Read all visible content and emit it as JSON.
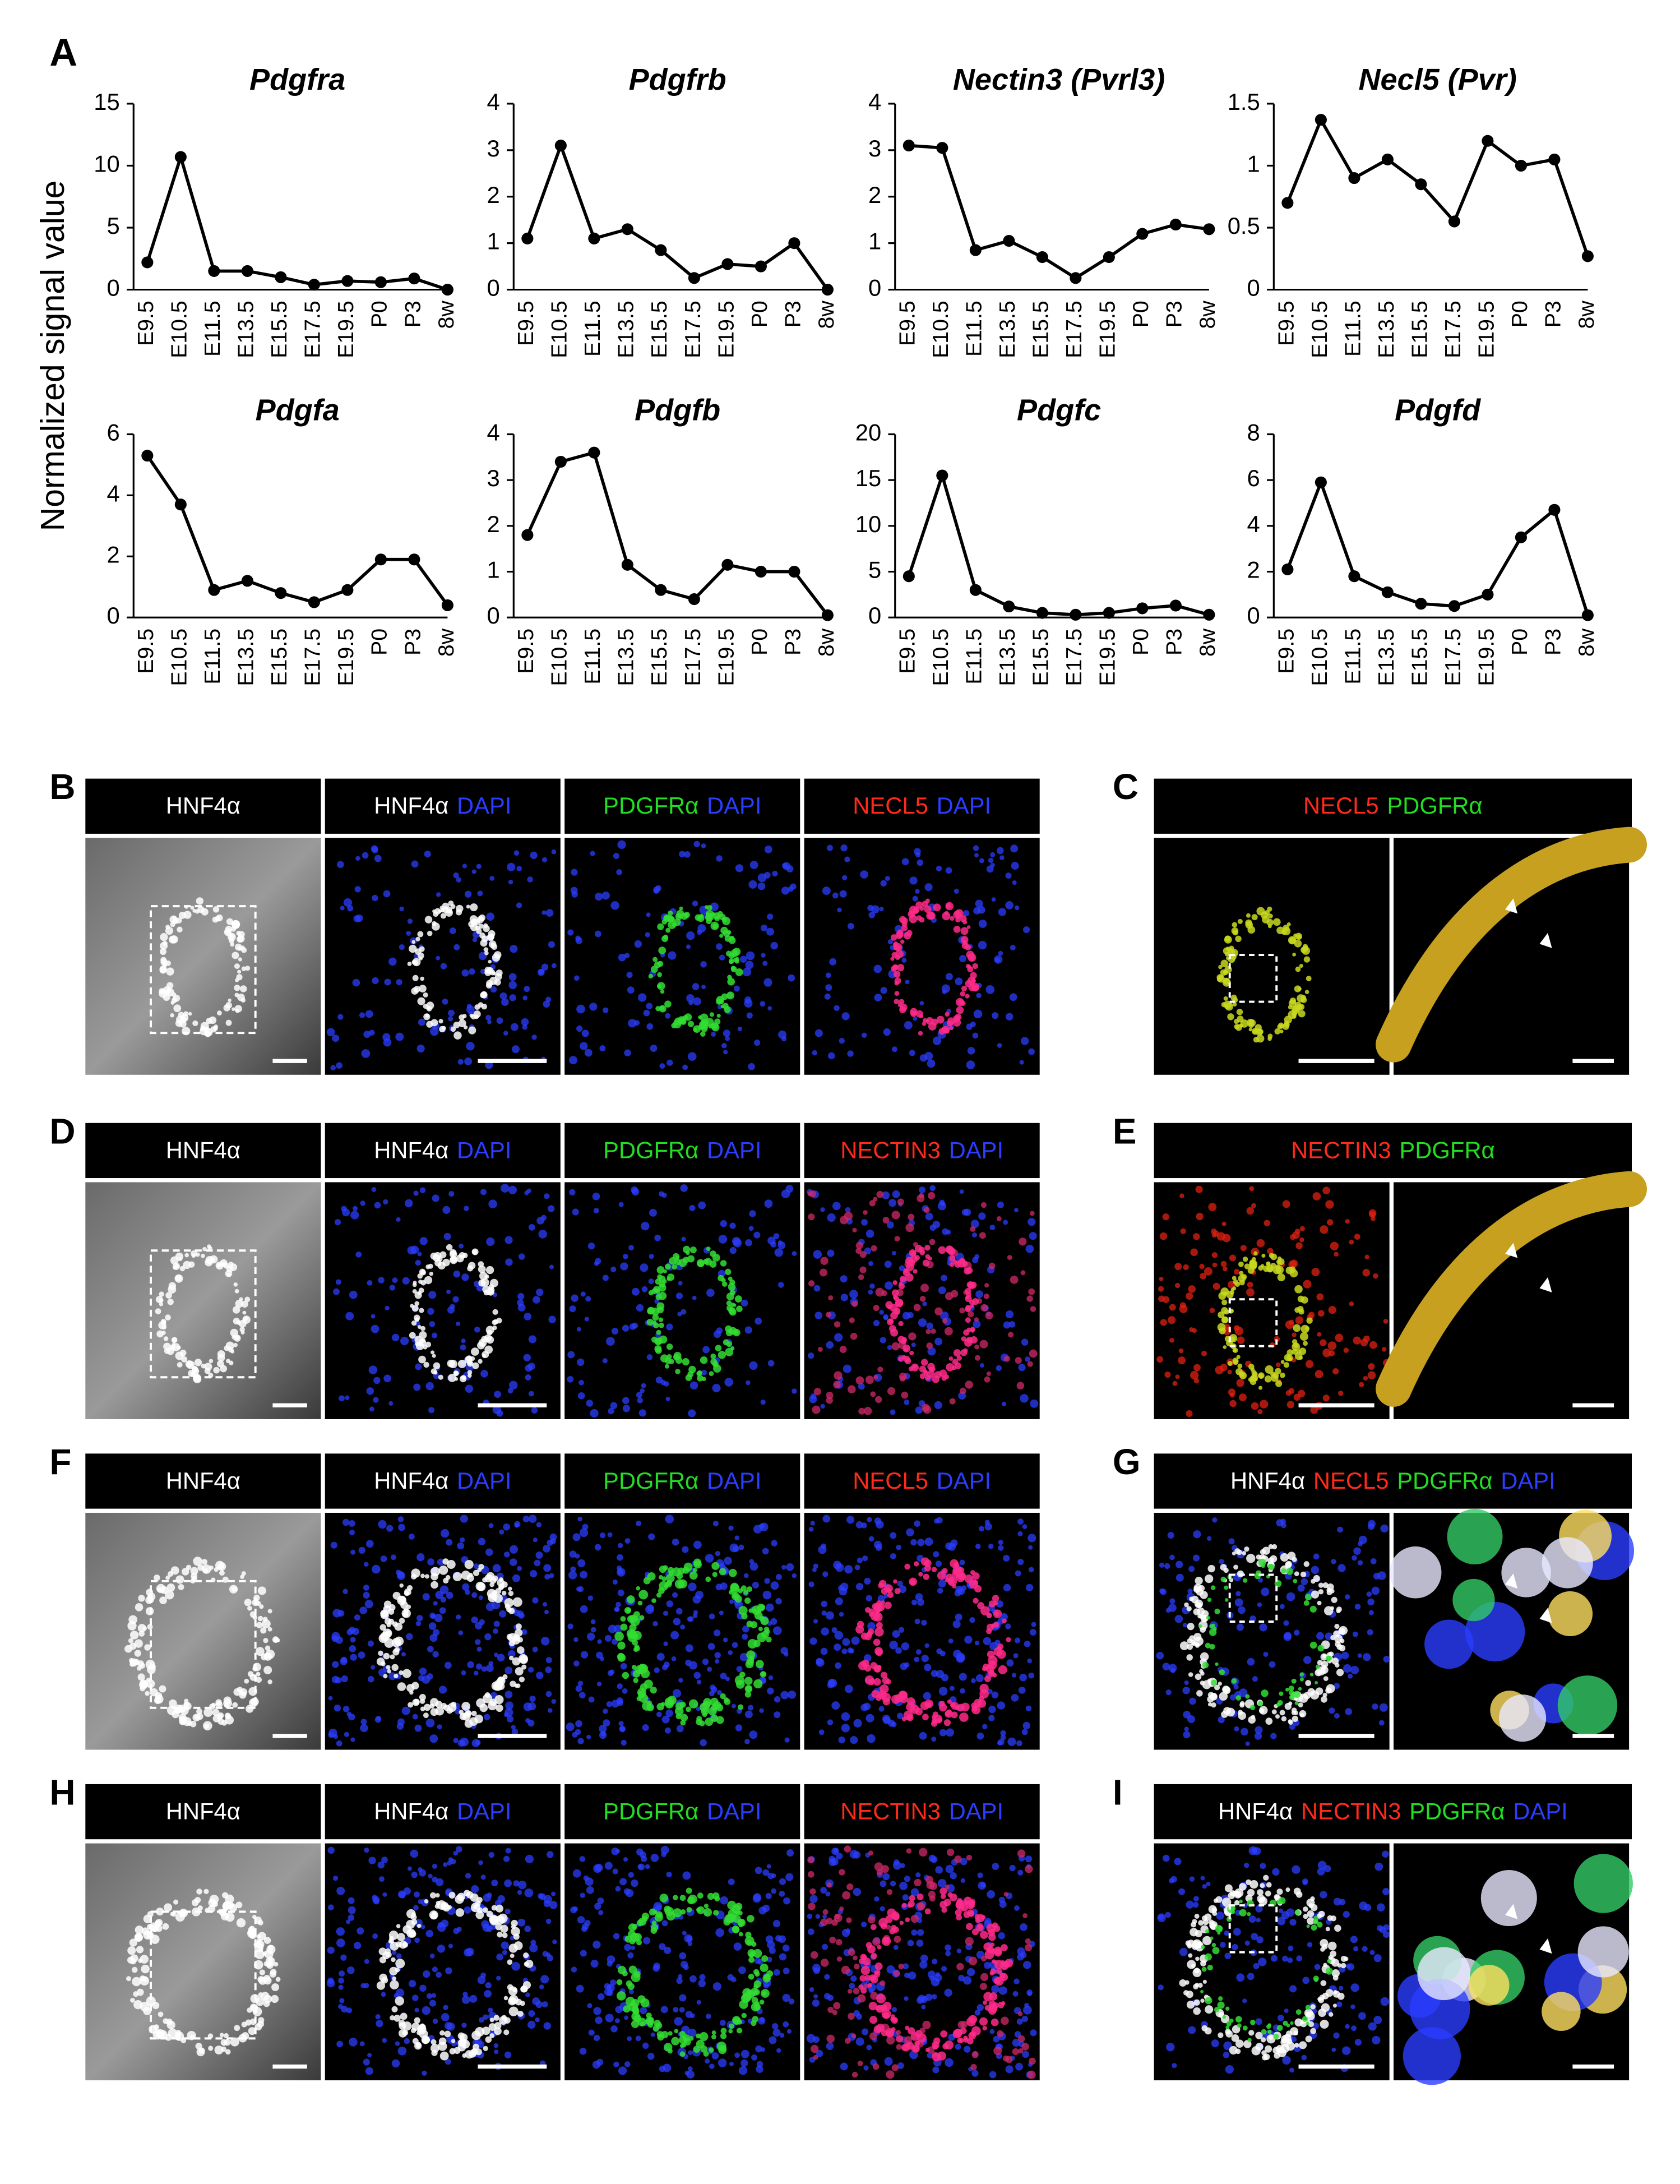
{
  "panel_label": "A",
  "y_label": "Normalized signal value",
  "chart_data": [
    {
      "type": "line",
      "title": "Pdgfra",
      "categories": [
        "E9.5",
        "E10.5",
        "E11.5",
        "E13.5",
        "E15.5",
        "E17.5",
        "E19.5",
        "P0",
        "P3",
        "8w"
      ],
      "values": [
        2.2,
        10.7,
        1.5,
        1.5,
        1.0,
        0.4,
        0.7,
        0.6,
        0.9,
        0
      ],
      "ylim": [
        0,
        15
      ],
      "yticks": [
        0,
        5,
        10,
        15
      ],
      "color": "#000000"
    },
    {
      "type": "line",
      "title": "Pdgfrb",
      "categories": [
        "E9.5",
        "E10.5",
        "E11.5",
        "E13.5",
        "E15.5",
        "E17.5",
        "E19.5",
        "P0",
        "P3",
        "8w"
      ],
      "values": [
        1.1,
        3.1,
        1.1,
        1.3,
        0.85,
        0.25,
        0.55,
        0.5,
        1.0,
        0
      ],
      "ylim": [
        0,
        4
      ],
      "yticks": [
        0,
        1,
        2,
        3,
        4
      ],
      "color": "#000000"
    },
    {
      "type": "line",
      "title": "Nectin3 (Pvrl3)",
      "categories": [
        "E9.5",
        "E10.5",
        "E11.5",
        "E13.5",
        "E15.5",
        "E17.5",
        "E19.5",
        "P0",
        "P3",
        "8w"
      ],
      "values": [
        3.1,
        3.05,
        0.85,
        1.05,
        0.7,
        0.25,
        0.7,
        1.2,
        1.4,
        1.3
      ],
      "ylim": [
        0,
        4
      ],
      "yticks": [
        0,
        1,
        2,
        3,
        4
      ],
      "color": "#000000"
    },
    {
      "type": "line",
      "title": "Necl5 (Pvr)",
      "categories": [
        "E9.5",
        "E10.5",
        "E11.5",
        "E13.5",
        "E15.5",
        "E17.5",
        "E19.5",
        "P0",
        "P3",
        "8w"
      ],
      "values": [
        0.7,
        1.37,
        0.9,
        1.05,
        0.85,
        0.55,
        1.2,
        1.0,
        1.05,
        0.27
      ],
      "ylim": [
        0,
        1.5
      ],
      "yticks": [
        0,
        0.5,
        1,
        1.5
      ],
      "color": "#000000"
    },
    {
      "type": "line",
      "title": "Pdgfa",
      "categories": [
        "E9.5",
        "E10.5",
        "E11.5",
        "E13.5",
        "E15.5",
        "E17.5",
        "E19.5",
        "P0",
        "P3",
        "8w"
      ],
      "values": [
        5.3,
        3.7,
        0.9,
        1.2,
        0.8,
        0.5,
        0.9,
        1.9,
        1.9,
        0.4
      ],
      "ylim": [
        0,
        6
      ],
      "yticks": [
        0,
        2,
        4,
        6
      ],
      "color": "#000000"
    },
    {
      "type": "line",
      "title": "Pdgfb",
      "categories": [
        "E9.5",
        "E10.5",
        "E11.5",
        "E13.5",
        "E15.5",
        "E17.5",
        "E19.5",
        "P0",
        "P3",
        "8w"
      ],
      "values": [
        1.8,
        3.4,
        3.6,
        1.15,
        0.6,
        0.4,
        1.15,
        1.0,
        1.0,
        0.05
      ],
      "ylim": [
        0,
        4
      ],
      "yticks": [
        0,
        1,
        2,
        3,
        4
      ],
      "color": "#000000"
    },
    {
      "type": "line",
      "title": "Pdgfc",
      "categories": [
        "E9.5",
        "E10.5",
        "E11.5",
        "E13.5",
        "E15.5",
        "E17.5",
        "E19.5",
        "P0",
        "P3",
        "8w"
      ],
      "values": [
        4.5,
        15.5,
        3.0,
        1.2,
        0.5,
        0.3,
        0.5,
        1.0,
        1.3,
        0.3
      ],
      "ylim": [
        0,
        20
      ],
      "yticks": [
        0,
        5,
        10,
        15,
        20
      ],
      "color": "#000000"
    },
    {
      "type": "line",
      "title": "Pdgfd",
      "categories": [
        "E9.5",
        "E10.5",
        "E11.5",
        "E13.5",
        "E15.5",
        "E17.5",
        "E19.5",
        "P0",
        "P3",
        "8w"
      ],
      "values": [
        2.1,
        5.9,
        1.8,
        1.1,
        0.6,
        0.5,
        1.0,
        3.5,
        4.7,
        0.1
      ],
      "ylim": [
        0,
        8
      ],
      "yticks": [
        0,
        2,
        4,
        6,
        8
      ],
      "color": "#000000"
    }
  ],
  "image_rows": [
    {
      "left": {
        "label": "B",
        "headers": [
          [
            {
              "text": "HNF4α",
              "color": "#ffffff"
            }
          ],
          [
            {
              "text": "HNF4α",
              "color": "#ffffff"
            },
            {
              "text": "DAPI",
              "color": "#2b3dff"
            }
          ],
          [
            {
              "text": "PDGFRα",
              "color": "#22dd22"
            },
            {
              "text": "DAPI",
              "color": "#2b3dff"
            }
          ],
          [
            {
              "text": "NECL5",
              "color": "#ff2a1a"
            },
            {
              "text": "DAPI",
              "color": "#2b3dff"
            }
          ]
        ]
      },
      "right": {
        "label": "C",
        "header": [
          {
            "text": "NECL5",
            "color": "#ff2a1a"
          },
          {
            "text": "PDGFRα",
            "color": "#22dd22"
          }
        ]
      }
    },
    {
      "left": {
        "label": "D",
        "headers": [
          [
            {
              "text": "HNF4α",
              "color": "#ffffff"
            }
          ],
          [
            {
              "text": "HNF4α",
              "color": "#ffffff"
            },
            {
              "text": "DAPI",
              "color": "#2b3dff"
            }
          ],
          [
            {
              "text": "PDGFRα",
              "color": "#22dd22"
            },
            {
              "text": "DAPI",
              "color": "#2b3dff"
            }
          ],
          [
            {
              "text": "NECTIN3",
              "color": "#ff2a1a"
            },
            {
              "text": "DAPI",
              "color": "#2b3dff"
            }
          ]
        ]
      },
      "right": {
        "label": "E",
        "header": [
          {
            "text": "NECTIN3",
            "color": "#ff2a1a"
          },
          {
            "text": "PDGFRα",
            "color": "#22dd22"
          }
        ]
      }
    },
    {
      "left": {
        "label": "F",
        "headers": [
          [
            {
              "text": "HNF4α",
              "color": "#ffffff"
            }
          ],
          [
            {
              "text": "HNF4α",
              "color": "#ffffff"
            },
            {
              "text": "DAPI",
              "color": "#2b3dff"
            }
          ],
          [
            {
              "text": "PDGFRα",
              "color": "#22dd22"
            },
            {
              "text": "DAPI",
              "color": "#2b3dff"
            }
          ],
          [
            {
              "text": "NECL5",
              "color": "#ff2a1a"
            },
            {
              "text": "DAPI",
              "color": "#2b3dff"
            }
          ]
        ]
      },
      "right": {
        "label": "G",
        "header": [
          {
            "text": "HNF4α",
            "color": "#ffffff"
          },
          {
            "text": "NECL5",
            "color": "#ff2a1a"
          },
          {
            "text": "PDGFRα",
            "color": "#22dd22"
          },
          {
            "text": "DAPI",
            "color": "#2b3dff"
          }
        ]
      }
    },
    {
      "left": {
        "label": "H",
        "headers": [
          [
            {
              "text": "HNF4α",
              "color": "#ffffff"
            }
          ],
          [
            {
              "text": "HNF4α",
              "color": "#ffffff"
            },
            {
              "text": "DAPI",
              "color": "#2b3dff"
            }
          ],
          [
            {
              "text": "PDGFRα",
              "color": "#22dd22"
            },
            {
              "text": "DAPI",
              "color": "#2b3dff"
            }
          ],
          [
            {
              "text": "NECTIN3",
              "color": "#ff2a1a"
            },
            {
              "text": "DAPI",
              "color": "#2b3dff"
            }
          ]
        ]
      },
      "right": {
        "label": "I",
        "header": [
          {
            "text": "HNF4α",
            "color": "#ffffff"
          },
          {
            "text": "NECTIN3",
            "color": "#ff2a1a"
          },
          {
            "text": "PDGFRα",
            "color": "#22dd22"
          },
          {
            "text": "DAPI",
            "color": "#2b3dff"
          }
        ]
      }
    }
  ]
}
